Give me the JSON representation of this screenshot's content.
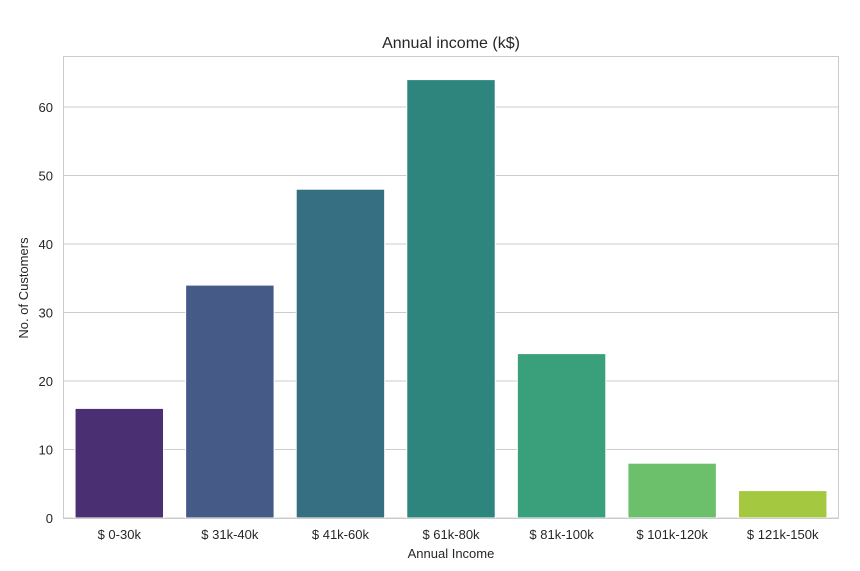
{
  "chart_data": {
    "type": "bar",
    "title": "Annual income (k$)",
    "xlabel": "Annual Income",
    "ylabel": "No. of Customers",
    "categories": [
      "$ 0-30k",
      "$ 31k-40k",
      "$ 41k-60k",
      "$ 61k-80k",
      "$ 81k-100k",
      "$ 101k-120k",
      "$ 121k-150k"
    ],
    "values": [
      16,
      34,
      48,
      64,
      24,
      8,
      4
    ],
    "colors": [
      "#4a2f73",
      "#455a87",
      "#376f82",
      "#2d857e",
      "#3aa07b",
      "#6cc06c",
      "#a4c840"
    ],
    "ylim": [
      0,
      67.3
    ],
    "yticks": [
      0,
      10,
      20,
      30,
      40,
      50,
      60
    ],
    "grid": true,
    "legend": "none"
  }
}
